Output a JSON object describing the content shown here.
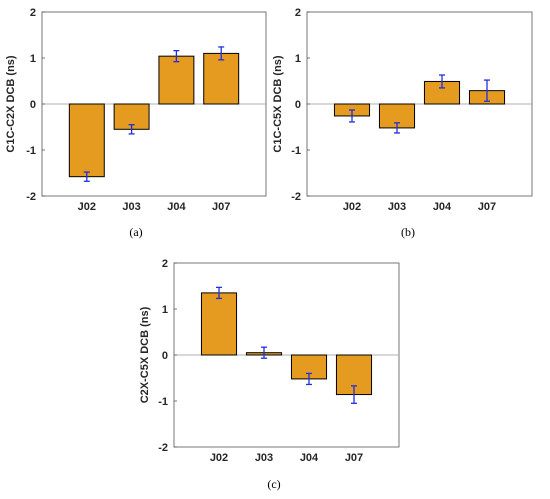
{
  "figure": {
    "panel_labels": [
      "(a)",
      "(b)",
      "(c)"
    ]
  },
  "colors": {
    "bar_fill": "#E49B20",
    "bar_edge": "#000000",
    "error_bar": "#1F2FE0",
    "axis": "#555555",
    "zero_line": "#999999"
  },
  "chart_data": [
    {
      "type": "bar",
      "categories": [
        "J02",
        "J03",
        "J04",
        "J07"
      ],
      "values": [
        -1.58,
        -0.55,
        1.04,
        1.1
      ],
      "errors": [
        0.1,
        0.1,
        0.12,
        0.14
      ],
      "title": "",
      "xlabel": "",
      "ylabel": "C1C-C2X DCB (ns)",
      "ylim": [
        -2,
        2
      ],
      "yticks": [
        "2",
        "1",
        "0",
        "-1",
        "-2"
      ],
      "grid": false
    },
    {
      "type": "bar",
      "categories": [
        "J02",
        "J03",
        "J04",
        "J07"
      ],
      "values": [
        -0.26,
        -0.52,
        0.49,
        0.29
      ],
      "errors": [
        0.13,
        0.11,
        0.14,
        0.23
      ],
      "title": "",
      "xlabel": "",
      "ylabel": "C1C-C5X DCB (ns)",
      "ylim": [
        -2,
        2
      ],
      "yticks": [
        "2",
        "1",
        "0",
        "-1",
        "-2"
      ],
      "grid": false
    },
    {
      "type": "bar",
      "categories": [
        "J02",
        "J03",
        "J04",
        "J07"
      ],
      "values": [
        1.35,
        0.05,
        -0.52,
        -0.86
      ],
      "errors": [
        0.12,
        0.12,
        0.12,
        0.19
      ],
      "title": "",
      "xlabel": "",
      "ylabel": "C2X-C5X DCB (ns)",
      "ylim": [
        -2,
        2
      ],
      "yticks": [
        "2",
        "1",
        "0",
        "-1",
        "-2"
      ],
      "grid": false
    }
  ]
}
